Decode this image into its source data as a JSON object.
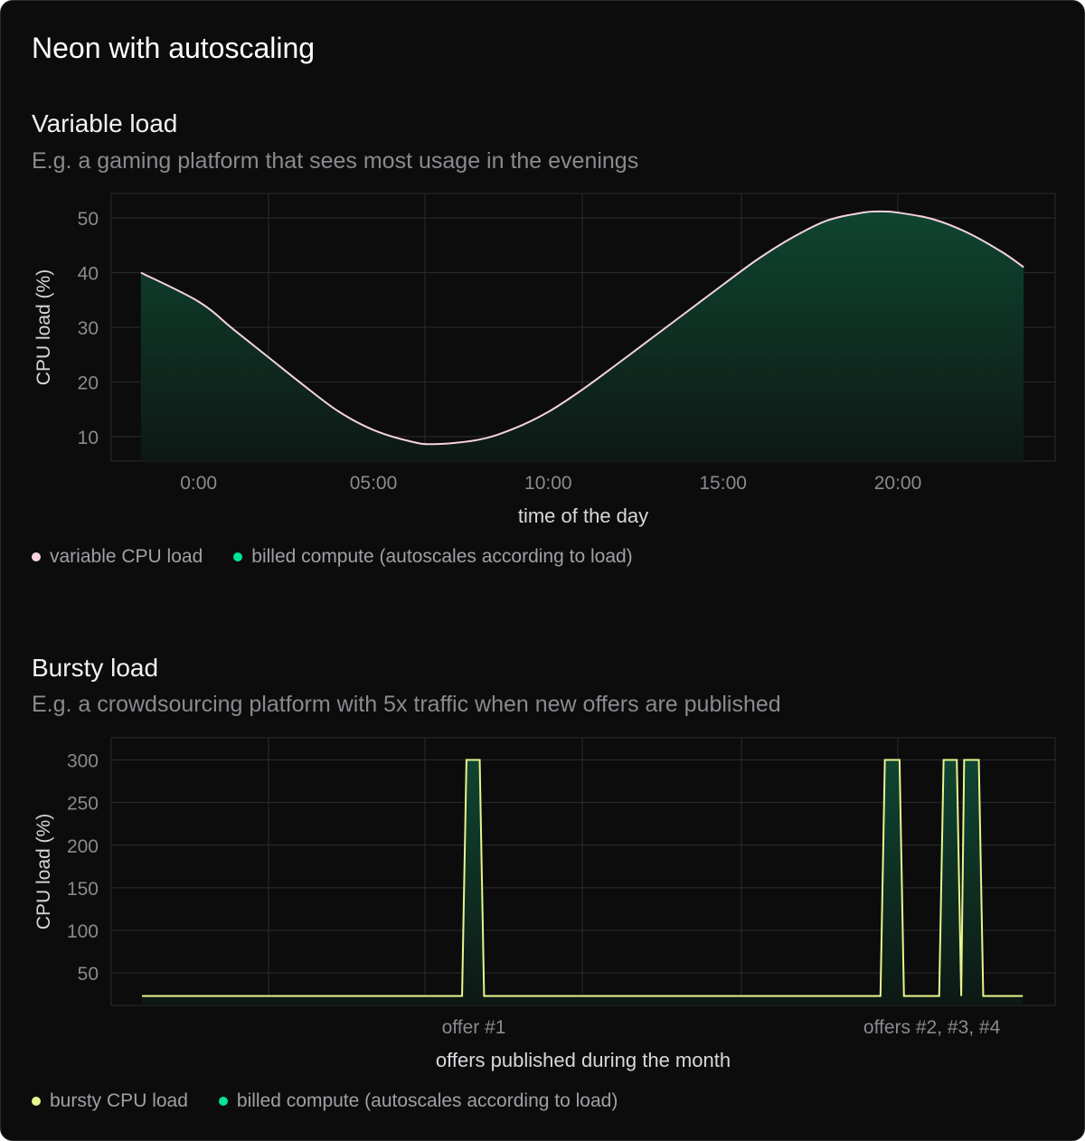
{
  "title": "Neon with autoscaling",
  "colors": {
    "variable_line": "#f7d3e0",
    "bursty_line": "#e8f48c",
    "billed": "#00e599",
    "fill_top": "#0f4530",
    "fill_bottom": "#0d1814",
    "grid": "#2b2d2e"
  },
  "chart_data": [
    {
      "type": "area",
      "heading": "Variable load",
      "subtitle": "E.g. a gaming platform that sees most usage in the evenings",
      "xlabel": "time of the day",
      "ylabel": "CPU load (%)",
      "xticks": [
        "0:00",
        "05:00",
        "10:00",
        "15:00",
        "20:00"
      ],
      "xtick_values": [
        0,
        5,
        10,
        15,
        20
      ],
      "yticks": [
        10,
        20,
        30,
        40,
        50
      ],
      "ylim": [
        5.5,
        54.5
      ],
      "xlim": [
        -2.5,
        24.5
      ],
      "grid": true,
      "legend": [
        {
          "label": "variable CPU load",
          "color": "#f7d3e0"
        },
        {
          "label": "billed compute (autoscales according to load)",
          "color": "#00e599"
        }
      ],
      "series": [
        {
          "points": [
            [
              -1.65,
              40
            ],
            [
              0,
              34.7
            ],
            [
              1,
              29.6
            ],
            [
              2,
              24.5
            ],
            [
              3,
              19.4
            ],
            [
              4,
              14.6
            ],
            [
              5,
              11.2
            ],
            [
              6,
              9.2
            ],
            [
              6.7,
              8.6
            ],
            [
              8,
              9.4
            ],
            [
              9,
              11.4
            ],
            [
              10,
              14.5
            ],
            [
              11,
              18.7
            ],
            [
              12,
              23.4
            ],
            [
              13,
              28.2
            ],
            [
              14,
              33
            ],
            [
              15,
              37.8
            ],
            [
              16,
              42.5
            ],
            [
              17,
              46.5
            ],
            [
              18,
              49.6
            ],
            [
              19,
              51
            ],
            [
              19.5,
              51.2
            ],
            [
              20,
              51
            ],
            [
              21,
              49.8
            ],
            [
              22,
              47.3
            ],
            [
              23,
              43.7
            ],
            [
              23.6,
              41
            ]
          ]
        }
      ]
    },
    {
      "type": "area",
      "heading": "Bursty load",
      "subtitle": "E.g. a crowdsourcing platform with 5x traffic when new offers are published",
      "xlabel": "offers published during the month",
      "ylabel": "CPU load (%)",
      "xticks": [
        "offer #1",
        "offers #2, #3, #4"
      ],
      "xtick_values": [
        11.3,
        26.9
      ],
      "yticks": [
        50,
        100,
        150,
        200,
        250,
        300
      ],
      "ylim": [
        12,
        326
      ],
      "xlim": [
        -1.05,
        31.1
      ],
      "grid": true,
      "legend": [
        {
          "label": "bursty CPU load",
          "color": "#e8f48c"
        },
        {
          "label": "billed compute (autoscales according to load)",
          "color": "#00e599"
        }
      ],
      "series": [
        {
          "points": [
            [
              0,
              23
            ],
            [
              10.9,
              23
            ],
            [
              11.05,
              300
            ],
            [
              11.5,
              300
            ],
            [
              11.65,
              23
            ],
            [
              25.15,
              23
            ],
            [
              25.3,
              300
            ],
            [
              25.8,
              300
            ],
            [
              25.95,
              23
            ],
            [
              27.15,
              23
            ],
            [
              27.3,
              300
            ],
            [
              27.75,
              300
            ],
            [
              27.9,
              23
            ],
            [
              28.0,
              300
            ],
            [
              28.5,
              300
            ],
            [
              28.65,
              23
            ],
            [
              30,
              23
            ]
          ]
        }
      ]
    }
  ]
}
